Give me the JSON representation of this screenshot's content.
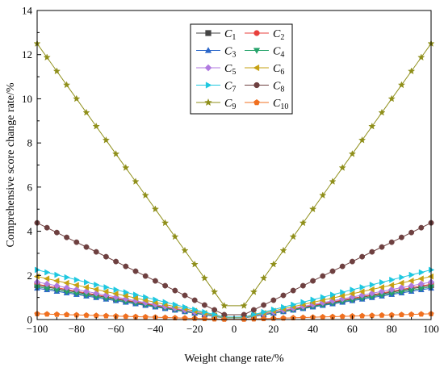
{
  "chart_data": {
    "type": "line",
    "title": "",
    "xlabel": "Weight change rate/%",
    "ylabel": "Comprehensive score change rate/%",
    "xlim": [
      -100,
      100
    ],
    "ylim": [
      0,
      14
    ],
    "xticks": [
      -100,
      -80,
      -60,
      -40,
      -20,
      0,
      20,
      40,
      60,
      80,
      100
    ],
    "yticks": [
      0,
      2,
      4,
      6,
      8,
      10,
      12,
      14
    ],
    "xtick_labels": [
      "−100",
      "−80",
      "−60",
      "−40",
      "−20",
      "0",
      "20",
      "40",
      "60",
      "80",
      "100"
    ],
    "ytick_labels": [
      "0",
      "2",
      "4",
      "6",
      "8",
      "10",
      "12",
      "14"
    ],
    "x_points": {
      "start": -100,
      "end": 100,
      "step": 5,
      "skip": [
        0
      ]
    },
    "legend": {
      "placement": "top-center",
      "columns": 2
    },
    "grid": false,
    "series": [
      {
        "name": "C",
        "sub": "1",
        "color": "#444444",
        "marker": "square",
        "max_value": 1.55
      },
      {
        "name": "C",
        "sub": "2",
        "color": "#e8403c",
        "marker": "circle",
        "max_value": 1.6
      },
      {
        "name": "C",
        "sub": "3",
        "color": "#2a66c9",
        "marker": "triangle-up",
        "max_value": 1.42
      },
      {
        "name": "C",
        "sub": "4",
        "color": "#26a36b",
        "marker": "triangle-down",
        "max_value": 1.48
      },
      {
        "name": "C",
        "sub": "5",
        "color": "#b07ae0",
        "marker": "diamond",
        "max_value": 1.7
      },
      {
        "name": "C",
        "sub": "6",
        "color": "#c6a112",
        "marker": "triangle-left",
        "max_value": 1.95
      },
      {
        "name": "C",
        "sub": "7",
        "color": "#1ec8e0",
        "marker": "triangle-right",
        "max_value": 2.25
      },
      {
        "name": "C",
        "sub": "8",
        "color": "#6e4040",
        "marker": "circle",
        "max_value": 4.38
      },
      {
        "name": "C",
        "sub": "9",
        "color": "#8f8f1a",
        "marker": "star",
        "max_value": 12.5
      },
      {
        "name": "C",
        "sub": "10",
        "color": "#f07020",
        "marker": "pentagon",
        "max_value": 0.26
      }
    ]
  }
}
